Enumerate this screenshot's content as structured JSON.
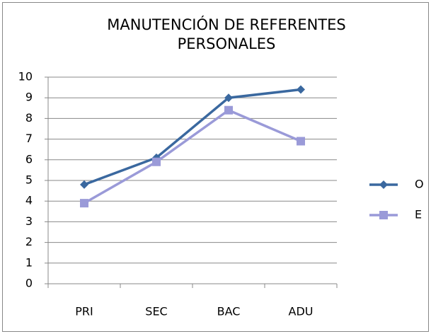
{
  "chart_data": {
    "type": "line",
    "title": "MANUTENCIÓN DE REFERENTES PERSONALES",
    "categories": [
      "PRI",
      "SEC",
      "BAC",
      "ADU"
    ],
    "series": [
      {
        "name": "O",
        "color": "#3a689f",
        "marker": "diamond",
        "values": [
          4.8,
          6.1,
          9.0,
          9.4
        ]
      },
      {
        "name": "E",
        "color": "#9a9ad8",
        "marker": "square",
        "values": [
          3.9,
          5.9,
          8.4,
          6.9
        ]
      }
    ],
    "ylim": [
      0,
      10
    ],
    "yticks": [
      0,
      1,
      2,
      3,
      4,
      5,
      6,
      7,
      8,
      9,
      10
    ],
    "grid": true,
    "legend": "right"
  }
}
